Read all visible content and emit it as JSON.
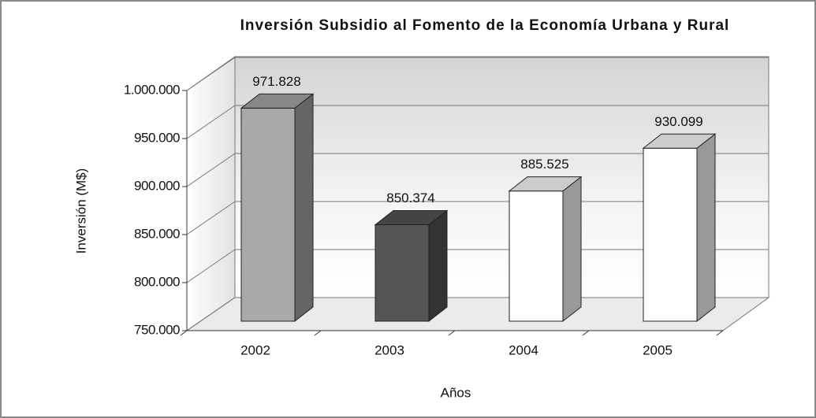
{
  "chart_data": {
    "type": "bar3d",
    "title": "Inversión Subsidio al Fomento de la Economía Urbana y Rural",
    "y_label": "Inversión (M$)",
    "x_label": "Años",
    "categories": [
      "2002",
      "2003",
      "2004",
      "2005"
    ],
    "values": [
      971828,
      850374,
      885525,
      930099
    ],
    "value_labels": [
      "971.828",
      "850.374",
      "885.525",
      "930.099"
    ],
    "colors": [
      "#a9a9a9",
      "#555555",
      "#ffffff",
      "#ffffff"
    ],
    "ylim": [
      750000,
      1000000
    ],
    "yticks": [
      {
        "value": 750000,
        "label": "750.000"
      },
      {
        "value": 800000,
        "label": "800.000"
      },
      {
        "value": 850000,
        "label": "850.000"
      },
      {
        "value": 900000,
        "label": "900.000"
      },
      {
        "value": 950000,
        "label": "950.000"
      },
      {
        "value": 1000000,
        "label": "1.000.000"
      }
    ],
    "grid": true
  }
}
